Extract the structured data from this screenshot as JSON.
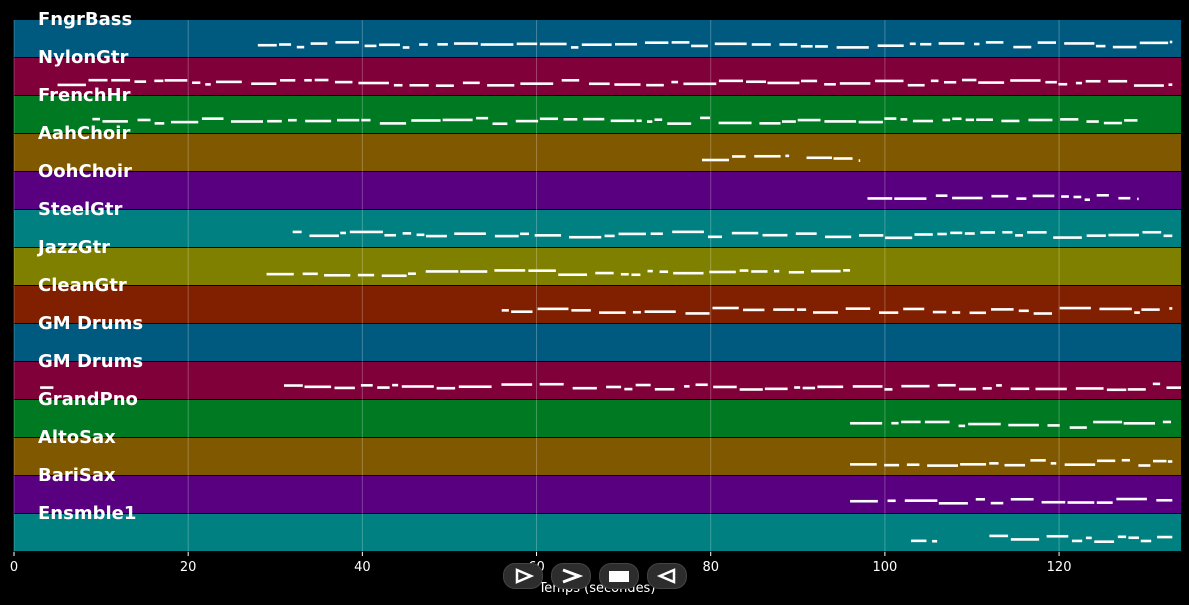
{
  "app": {
    "xlabel": "Temps (secondes)",
    "xticks": [
      "0",
      "20",
      "40",
      "60",
      "80",
      "100",
      "120"
    ]
  },
  "chart_data": {
    "type": "piano-roll",
    "xlabel": "Temps (secondes)",
    "xlim": [
      0,
      134
    ],
    "grid": true,
    "tracks": [
      {
        "name": "FngrBass",
        "color": "#005a80",
        "notes": [
          [
            28,
            133
          ]
        ]
      },
      {
        "name": "NylonGtr",
        "color": "#80003a",
        "notes": [
          [
            5,
            133
          ]
        ]
      },
      {
        "name": "FrenchHr",
        "color": "#007a22",
        "notes": [
          [
            9,
            129
          ]
        ]
      },
      {
        "name": "AahChoir",
        "color": "#805800",
        "notes": [
          [
            79,
            84
          ],
          [
            85,
            89
          ],
          [
            91,
            97
          ]
        ]
      },
      {
        "name": "OohChoir",
        "color": "#580080",
        "notes": [
          [
            98,
            129
          ]
        ]
      },
      {
        "name": "SteelGtr",
        "color": "#008080",
        "notes": [
          [
            32,
            133
          ]
        ]
      },
      {
        "name": "JazzGtr",
        "color": "#808000",
        "notes": [
          [
            29,
            96
          ]
        ]
      },
      {
        "name": "CleanGtr",
        "color": "#802000",
        "notes": [
          [
            56,
            133
          ]
        ]
      },
      {
        "name": "GM Drums",
        "color": "#005a80",
        "notes": []
      },
      {
        "name": "GM Drums",
        "color": "#80003a",
        "notes": [
          [
            3,
            5
          ],
          [
            31,
            134
          ]
        ]
      },
      {
        "name": "GrandPno",
        "color": "#007a22",
        "notes": [
          [
            96,
            133
          ]
        ]
      },
      {
        "name": "AltoSax",
        "color": "#805800",
        "notes": [
          [
            96,
            133
          ]
        ]
      },
      {
        "name": "BariSax",
        "color": "#580080",
        "notes": [
          [
            96,
            133
          ]
        ]
      },
      {
        "name": "Ensmble1",
        "color": "#008080",
        "notes": [
          [
            103,
            106
          ],
          [
            112,
            133
          ]
        ]
      }
    ]
  },
  "transport": {
    "buttons": [
      {
        "name": "play-button",
        "icon": "play-icon"
      },
      {
        "name": "fast-forward-button",
        "icon": "forward-icon"
      },
      {
        "name": "stop-button",
        "icon": "stop-icon"
      },
      {
        "name": "rewind-button",
        "icon": "rewind-icon"
      }
    ]
  }
}
